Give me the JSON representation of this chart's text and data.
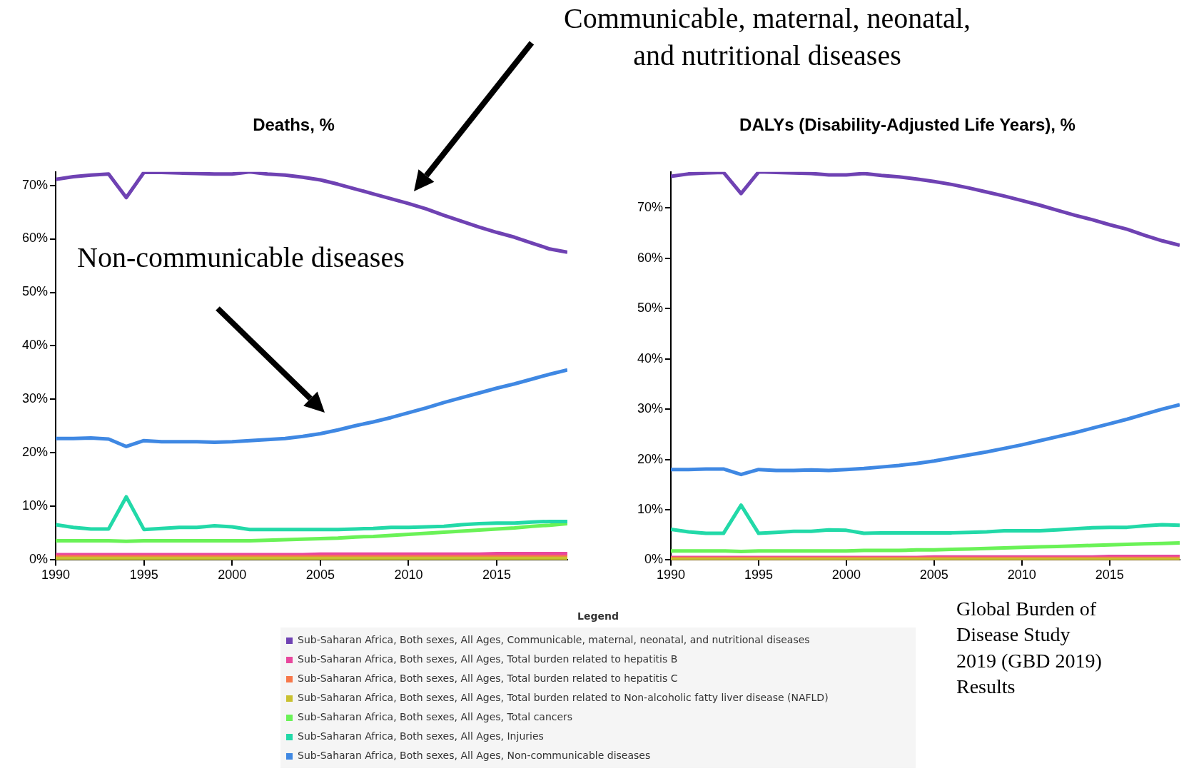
{
  "chart_data": [
    {
      "type": "line",
      "title": "Deaths, %",
      "legend": "bottom",
      "legend_title": "Legend",
      "x": [
        1990,
        1991,
        1992,
        1993,
        1994,
        1995,
        1996,
        1997,
        1998,
        1999,
        2000,
        2001,
        2002,
        2003,
        2004,
        2005,
        2006,
        2007,
        2008,
        2009,
        2010,
        2011,
        2012,
        2013,
        2014,
        2015,
        2016,
        2017,
        2018,
        2019
      ],
      "xlim": [
        1990,
        2019
      ],
      "xticks": [
        1990,
        1995,
        2000,
        2005,
        2010,
        2015
      ],
      "ylim": [
        0,
        72.5
      ],
      "yticks": [
        {
          "value": 0,
          "label": "0%"
        },
        {
          "value": 10,
          "label": "10%"
        },
        {
          "value": 20,
          "label": "20%"
        },
        {
          "value": 30,
          "label": "30%"
        },
        {
          "value": 40,
          "label": "40%"
        },
        {
          "value": 50,
          "label": "50%"
        },
        {
          "value": 60,
          "label": "60%"
        },
        {
          "value": 70,
          "label": "70%"
        }
      ],
      "marker": "none",
      "line_style": "solid",
      "annotations": [
        "Communicable, maternal, neonatal, and nutritional diseases",
        "Non-communicable diseases"
      ],
      "series": [
        {
          "name": "Sub-Saharan Africa, Both sexes, All Ages, Communicable, maternal, neonatal, and nutritional diseases",
          "color": "#6f42b3",
          "values": [
            71.1,
            71.6,
            71.9,
            72.1,
            67.7,
            72.4,
            72.4,
            72.3,
            72.2,
            72.1,
            72.1,
            72.5,
            72.1,
            71.9,
            71.5,
            71.0,
            70.2,
            69.3,
            68.4,
            67.5,
            66.6,
            65.6,
            64.4,
            63.3,
            62.2,
            61.2,
            60.3,
            59.2,
            58.1,
            57.5
          ]
        },
        {
          "name": "Sub-Saharan Africa, Both sexes, All Ages, Total burden related to hepatitis B",
          "color": "#e8479d",
          "values": [
            1.0,
            1.0,
            1.0,
            1.0,
            1.0,
            1.0,
            1.0,
            1.0,
            1.0,
            1.0,
            1.0,
            1.0,
            1.0,
            1.0,
            1.0,
            1.1,
            1.1,
            1.1,
            1.1,
            1.1,
            1.1,
            1.1,
            1.1,
            1.1,
            1.1,
            1.2,
            1.2,
            1.2,
            1.2,
            1.2
          ]
        },
        {
          "name": "Sub-Saharan Africa, Both sexes, All Ages, Total burden related to hepatitis C",
          "color": "#f7784a",
          "values": [
            0.6,
            0.6,
            0.6,
            0.6,
            0.6,
            0.6,
            0.6,
            0.6,
            0.6,
            0.6,
            0.6,
            0.6,
            0.6,
            0.6,
            0.6,
            0.6,
            0.6,
            0.6,
            0.6,
            0.6,
            0.6,
            0.6,
            0.6,
            0.6,
            0.6,
            0.6,
            0.6,
            0.6,
            0.6,
            0.6
          ]
        },
        {
          "name": "Sub-Saharan Africa, Both sexes, All Ages, Total burden related to Non-alcoholic fatty liver disease (NAFLD)",
          "color": "#c9c130",
          "values": [
            0.3,
            0.3,
            0.3,
            0.3,
            0.3,
            0.3,
            0.3,
            0.3,
            0.3,
            0.3,
            0.3,
            0.3,
            0.3,
            0.3,
            0.3,
            0.3,
            0.3,
            0.3,
            0.3,
            0.3,
            0.3,
            0.3,
            0.3,
            0.3,
            0.3,
            0.3,
            0.3,
            0.3,
            0.3,
            0.3
          ]
        },
        {
          "name": "Sub-Saharan Africa, Both sexes, All Ages, Total cancers",
          "color": "#6af257",
          "values": [
            3.6,
            3.6,
            3.6,
            3.6,
            3.5,
            3.6,
            3.6,
            3.6,
            3.6,
            3.6,
            3.6,
            3.6,
            3.7,
            3.8,
            3.9,
            4.0,
            4.1,
            4.3,
            4.4,
            4.6,
            4.8,
            5.0,
            5.2,
            5.4,
            5.6,
            5.8,
            6.0,
            6.3,
            6.5,
            6.8
          ]
        },
        {
          "name": "Sub-Saharan Africa, Both sexes, All Ages, Injuries",
          "color": "#22d9a8",
          "values": [
            6.6,
            6.1,
            5.8,
            5.8,
            11.8,
            5.7,
            5.9,
            6.1,
            6.1,
            6.4,
            6.2,
            5.7,
            5.7,
            5.7,
            5.7,
            5.7,
            5.7,
            5.8,
            5.9,
            6.1,
            6.1,
            6.2,
            6.3,
            6.6,
            6.8,
            6.9,
            6.9,
            7.1,
            7.2,
            7.2
          ]
        },
        {
          "name": "Sub-Saharan Africa, Both sexes, All Ages, Non-communicable diseases",
          "color": "#3f88e3",
          "values": [
            22.7,
            22.7,
            22.8,
            22.6,
            21.2,
            22.3,
            22.1,
            22.1,
            22.1,
            22.0,
            22.1,
            22.3,
            22.5,
            22.7,
            23.1,
            23.6,
            24.3,
            25.1,
            25.8,
            26.6,
            27.5,
            28.4,
            29.4,
            30.3,
            31.2,
            32.1,
            32.9,
            33.8,
            34.7,
            35.5
          ]
        }
      ]
    },
    {
      "type": "line",
      "title": "DALYs (Disability-Adjusted Life Years), %",
      "legend": "bottom",
      "x": [
        1990,
        1991,
        1992,
        1993,
        1994,
        1995,
        1996,
        1997,
        1998,
        1999,
        2000,
        2001,
        2002,
        2003,
        2004,
        2005,
        2006,
        2007,
        2008,
        2009,
        2010,
        2011,
        2012,
        2013,
        2014,
        2015,
        2016,
        2017,
        2018,
        2019
      ],
      "xlim": [
        1990,
        2019
      ],
      "xticks": [
        1990,
        1995,
        2000,
        2005,
        2010,
        2015
      ],
      "ylim": [
        0,
        77.2
      ],
      "yticks": [
        {
          "value": 0,
          "label": "0%"
        },
        {
          "value": 10,
          "label": "10%"
        },
        {
          "value": 20,
          "label": "20%"
        },
        {
          "value": 30,
          "label": "30%"
        },
        {
          "value": 40,
          "label": "40%"
        },
        {
          "value": 50,
          "label": "50%"
        },
        {
          "value": 60,
          "label": "60%"
        },
        {
          "value": 70,
          "label": "70%"
        }
      ],
      "marker": "none",
      "line_style": "solid",
      "annotations": [
        "Global Burden of Disease Study 2019 (GBD 2019) Results"
      ],
      "series": [
        {
          "name": "Sub-Saharan Africa, Both sexes, All Ages, Communicable, maternal, neonatal, and nutritional diseases",
          "color": "#6f42b3",
          "values": [
            76.3,
            76.8,
            77.0,
            77.1,
            72.9,
            77.2,
            77.1,
            77.0,
            76.9,
            76.6,
            76.6,
            76.9,
            76.5,
            76.2,
            75.8,
            75.3,
            74.7,
            74.0,
            73.2,
            72.4,
            71.5,
            70.6,
            69.6,
            68.6,
            67.7,
            66.7,
            65.8,
            64.6,
            63.5,
            62.6
          ]
        },
        {
          "name": "Sub-Saharan Africa, Both sexes, All Ages, Total burden related to hepatitis B",
          "color": "#e8479d",
          "values": [
            0.5,
            0.5,
            0.5,
            0.5,
            0.5,
            0.5,
            0.5,
            0.5,
            0.5,
            0.5,
            0.5,
            0.5,
            0.5,
            0.5,
            0.5,
            0.6,
            0.6,
            0.6,
            0.6,
            0.6,
            0.6,
            0.6,
            0.6,
            0.6,
            0.6,
            0.7,
            0.7,
            0.7,
            0.7,
            0.7
          ]
        },
        {
          "name": "Sub-Saharan Africa, Both sexes, All Ages, Total burden related to hepatitis C",
          "color": "#f7784a",
          "values": [
            0.3,
            0.3,
            0.3,
            0.3,
            0.3,
            0.3,
            0.3,
            0.3,
            0.3,
            0.3,
            0.3,
            0.3,
            0.3,
            0.3,
            0.3,
            0.3,
            0.3,
            0.3,
            0.3,
            0.3,
            0.3,
            0.3,
            0.3,
            0.3,
            0.3,
            0.3,
            0.3,
            0.3,
            0.3,
            0.3
          ]
        },
        {
          "name": "Sub-Saharan Africa, Both sexes, All Ages, Total burden related to Non-alcoholic fatty liver disease (NAFLD)",
          "color": "#c9c130",
          "values": [
            0.1,
            0.1,
            0.1,
            0.1,
            0.1,
            0.1,
            0.1,
            0.1,
            0.1,
            0.1,
            0.1,
            0.1,
            0.1,
            0.1,
            0.1,
            0.1,
            0.1,
            0.1,
            0.1,
            0.1,
            0.1,
            0.1,
            0.1,
            0.1,
            0.1,
            0.1,
            0.1,
            0.1,
            0.1,
            0.1
          ]
        },
        {
          "name": "Sub-Saharan Africa, Both sexes, All Ages, Total cancers",
          "color": "#6af257",
          "values": [
            1.8,
            1.8,
            1.8,
            1.8,
            1.7,
            1.8,
            1.8,
            1.8,
            1.8,
            1.8,
            1.8,
            1.9,
            1.9,
            1.9,
            2.0,
            2.0,
            2.1,
            2.2,
            2.3,
            2.4,
            2.5,
            2.6,
            2.7,
            2.8,
            2.9,
            3.0,
            3.1,
            3.2,
            3.3,
            3.4
          ]
        },
        {
          "name": "Sub-Saharan Africa, Both sexes, All Ages, Injuries",
          "color": "#22d9a8",
          "values": [
            6.1,
            5.6,
            5.3,
            5.3,
            10.9,
            5.3,
            5.5,
            5.7,
            5.7,
            6.0,
            5.9,
            5.3,
            5.4,
            5.4,
            5.4,
            5.4,
            5.4,
            5.5,
            5.6,
            5.8,
            5.8,
            5.8,
            6.0,
            6.2,
            6.4,
            6.5,
            6.5,
            6.8,
            7.0,
            6.9
          ]
        },
        {
          "name": "Sub-Saharan Africa, Both sexes, All Ages, Non-communicable diseases",
          "color": "#3f88e3",
          "values": [
            18.0,
            18.0,
            18.1,
            18.1,
            17.0,
            18.0,
            17.8,
            17.8,
            17.9,
            17.8,
            18.0,
            18.2,
            18.5,
            18.8,
            19.2,
            19.7,
            20.3,
            20.9,
            21.5,
            22.2,
            22.9,
            23.7,
            24.5,
            25.3,
            26.2,
            27.1,
            28.0,
            29.0,
            30.0,
            30.9
          ]
        }
      ]
    }
  ]
}
